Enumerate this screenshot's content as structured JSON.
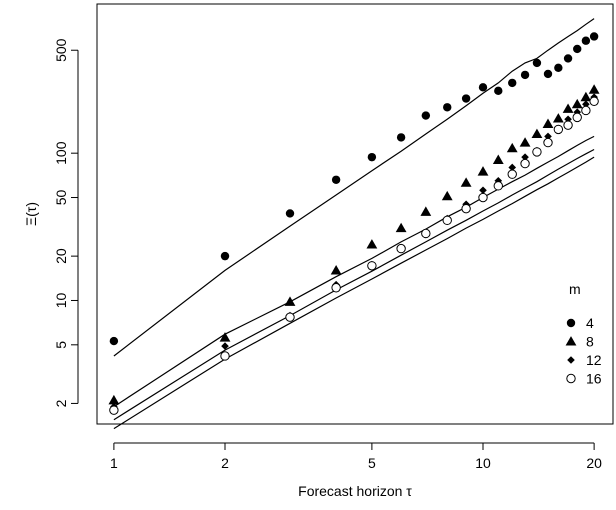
{
  "chart_data": {
    "type": "scatter",
    "title": "",
    "xlabel": "Forecast horizon τ",
    "ylabel": "Ξ(τ)",
    "x_scale": "log",
    "y_scale": "log",
    "xlim": [
      0.9,
      22.5
    ],
    "ylim": [
      1.45,
      1030
    ],
    "x_ticks": [
      1,
      2,
      5,
      10,
      20
    ],
    "x_tick_labels": [
      "1",
      "2",
      "5",
      "10",
      "20"
    ],
    "y_ticks": [
      2,
      5,
      10,
      20,
      50,
      100,
      500
    ],
    "y_tick_labels": [
      "2",
      "5",
      "10",
      "20",
      "50",
      "100",
      "500"
    ],
    "grid": false,
    "legend": {
      "title": "m",
      "position": "bottom-right"
    },
    "series": [
      {
        "name": "4",
        "marker": "filled-circle",
        "x": [
          1,
          2,
          3,
          4,
          5,
          6,
          7,
          8,
          9,
          10,
          11,
          12,
          13,
          14,
          15,
          16,
          17,
          18,
          19,
          20
        ],
        "y": [
          5.3,
          20,
          39,
          66,
          94,
          128,
          180,
          205,
          235,
          280,
          265,
          300,
          340,
          410,
          345,
          380,
          440,
          510,
          580,
          620
        ]
      },
      {
        "name": "8",
        "marker": "filled-triangle",
        "x": [
          1,
          2,
          3,
          4,
          5,
          6,
          7,
          8,
          9,
          10,
          11,
          12,
          13,
          14,
          15,
          16,
          17,
          18,
          19,
          20
        ],
        "y": [
          2.1,
          5.6,
          9.8,
          16,
          24,
          31,
          40,
          51,
          63,
          75,
          90,
          108,
          118,
          135,
          158,
          172,
          200,
          215,
          240,
          270
        ]
      },
      {
        "name": "12",
        "marker": "filled-diamond",
        "x": [
          1,
          2,
          3,
          4,
          5,
          6,
          7,
          8,
          9,
          10,
          11,
          12,
          13,
          14,
          15,
          16,
          17,
          18,
          19,
          20
        ],
        "y": [
          1.9,
          4.9,
          7.9,
          12.8,
          17.5,
          22.5,
          28,
          36,
          45,
          56,
          65,
          80,
          94,
          104,
          130,
          145,
          170,
          190,
          215,
          240
        ]
      },
      {
        "name": "16",
        "marker": "open-circle",
        "x": [
          1,
          2,
          3,
          4,
          5,
          6,
          7,
          8,
          9,
          10,
          11,
          12,
          13,
          14,
          15,
          16,
          17,
          18,
          19,
          20
        ],
        "y": [
          1.8,
          4.2,
          7.7,
          12.2,
          17.2,
          22.5,
          28.5,
          35,
          42,
          50,
          60,
          72,
          85,
          102,
          118,
          145,
          155,
          175,
          195,
          225
        ]
      }
    ],
    "lines": [
      {
        "x": [
          1,
          2,
          3,
          4,
          5,
          6,
          7,
          8,
          9,
          10,
          11,
          12,
          13,
          14,
          15,
          16,
          17,
          18,
          19,
          20
        ],
        "y": [
          4.2,
          16,
          32,
          52,
          76,
          103,
          135,
          170,
          210,
          255,
          300,
          360,
          410,
          440,
          500,
          560,
          620,
          680,
          750,
          820
        ]
      },
      {
        "x": [
          1,
          2,
          3,
          4,
          5,
          6,
          7,
          8,
          9,
          10,
          11,
          12,
          13,
          14,
          15,
          16,
          17,
          18,
          19,
          20
        ],
        "y": [
          1.9,
          5.9,
          9.8,
          14.5,
          19.3,
          25,
          30.5,
          37,
          43,
          50,
          57,
          64,
          71,
          79,
          87,
          95,
          104,
          113,
          122,
          130
        ]
      },
      {
        "x": [
          1,
          2,
          3,
          4,
          5,
          6,
          7,
          8,
          9,
          10,
          11,
          12,
          13,
          14,
          15,
          16,
          17,
          18,
          19,
          20
        ],
        "y": [
          1.55,
          4.6,
          7.9,
          11.8,
          15.8,
          20.3,
          25,
          30,
          35,
          40.5,
          46,
          52,
          58,
          64,
          71,
          78,
          85,
          92,
          99,
          106
        ]
      },
      {
        "x": [
          1,
          2,
          3,
          4,
          5,
          6,
          7,
          8,
          9,
          10,
          11,
          12,
          13,
          14,
          15,
          16,
          17,
          18,
          19,
          20
        ],
        "y": [
          1.35,
          4.0,
          7.0,
          10.4,
          14,
          17.9,
          22,
          26.3,
          31,
          35.5,
          40.5,
          45.5,
          51,
          56.5,
          62,
          68,
          74,
          80.5,
          87,
          94
        ]
      }
    ]
  }
}
